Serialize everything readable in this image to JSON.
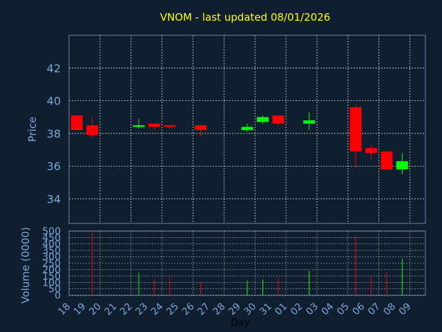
{
  "title": "VNOM - last updated 08/01/2026",
  "colors": {
    "background": "#0f1f30",
    "title": "#ffff00",
    "axis_text": "#7ea6d6",
    "frame": "#6f86a6",
    "grid": "#ffffff",
    "up": "#00ff00",
    "down": "#ff0000"
  },
  "chart_data": [
    {
      "type": "candlestick",
      "ylabel": "Price",
      "ylim": [
        32.5,
        44
      ],
      "yticks": [
        34,
        36,
        38,
        40,
        42
      ],
      "grid": true,
      "candles": [
        {
          "day": "18",
          "open": 39.1,
          "high": 39.1,
          "low": 38.2,
          "close": 38.2
        },
        {
          "day": "19",
          "open": 38.5,
          "high": 39.0,
          "low": 37.7,
          "close": 37.9
        },
        {
          "day": "22",
          "open": 38.4,
          "high": 38.9,
          "low": 38.3,
          "close": 38.5
        },
        {
          "day": "23",
          "open": 38.6,
          "high": 38.6,
          "low": 38.2,
          "close": 38.4
        },
        {
          "day": "24",
          "open": 38.5,
          "high": 38.5,
          "low": 38.3,
          "close": 38.4
        },
        {
          "day": "26",
          "open": 38.5,
          "high": 38.5,
          "low": 37.8,
          "close": 38.2
        },
        {
          "day": "29",
          "open": 38.2,
          "high": 38.6,
          "low": 38.1,
          "close": 38.4
        },
        {
          "day": "30",
          "open": 38.7,
          "high": 39.1,
          "low": 38.6,
          "close": 39.0
        },
        {
          "day": "31",
          "open": 39.1,
          "high": 39.1,
          "low": 38.5,
          "close": 38.6
        },
        {
          "day": "02",
          "open": 38.6,
          "high": 39.3,
          "low": 38.2,
          "close": 38.8
        },
        {
          "day": "05",
          "open": 39.6,
          "high": 39.8,
          "low": 35.9,
          "close": 36.9
        },
        {
          "day": "06",
          "open": 37.1,
          "high": 37.3,
          "low": 36.4,
          "close": 36.8
        },
        {
          "day": "07",
          "open": 36.9,
          "high": 36.9,
          "low": 35.8,
          "close": 35.8
        },
        {
          "day": "08",
          "open": 35.8,
          "high": 36.8,
          "low": 35.5,
          "close": 36.3
        }
      ]
    },
    {
      "type": "bar",
      "ylabel": "Volume (0000)",
      "xlabel": "Day",
      "ylim": [
        0,
        500
      ],
      "yticks": [
        0,
        50,
        100,
        150,
        200,
        250,
        300,
        350,
        400,
        450,
        500
      ],
      "categories": [
        "18",
        "19",
        "20",
        "21",
        "22",
        "23",
        "24",
        "25",
        "26",
        "27",
        "28",
        "29",
        "30",
        "31",
        "01",
        "02",
        "03",
        "04",
        "05",
        "06",
        "07",
        "08",
        "09"
      ],
      "volumes": [
        {
          "day": "19",
          "value": 490,
          "direction": "down"
        },
        {
          "day": "22",
          "value": 175,
          "direction": "up"
        },
        {
          "day": "23",
          "value": 125,
          "direction": "down"
        },
        {
          "day": "24",
          "value": 140,
          "direction": "down"
        },
        {
          "day": "26",
          "value": 105,
          "direction": "down"
        },
        {
          "day": "29",
          "value": 115,
          "direction": "up"
        },
        {
          "day": "30",
          "value": 125,
          "direction": "up"
        },
        {
          "day": "31",
          "value": 140,
          "direction": "down"
        },
        {
          "day": "02",
          "value": 190,
          "direction": "up"
        },
        {
          "day": "05",
          "value": 460,
          "direction": "down"
        },
        {
          "day": "06",
          "value": 145,
          "direction": "down"
        },
        {
          "day": "07",
          "value": 175,
          "direction": "down"
        },
        {
          "day": "08",
          "value": 285,
          "direction": "up"
        }
      ]
    }
  ]
}
